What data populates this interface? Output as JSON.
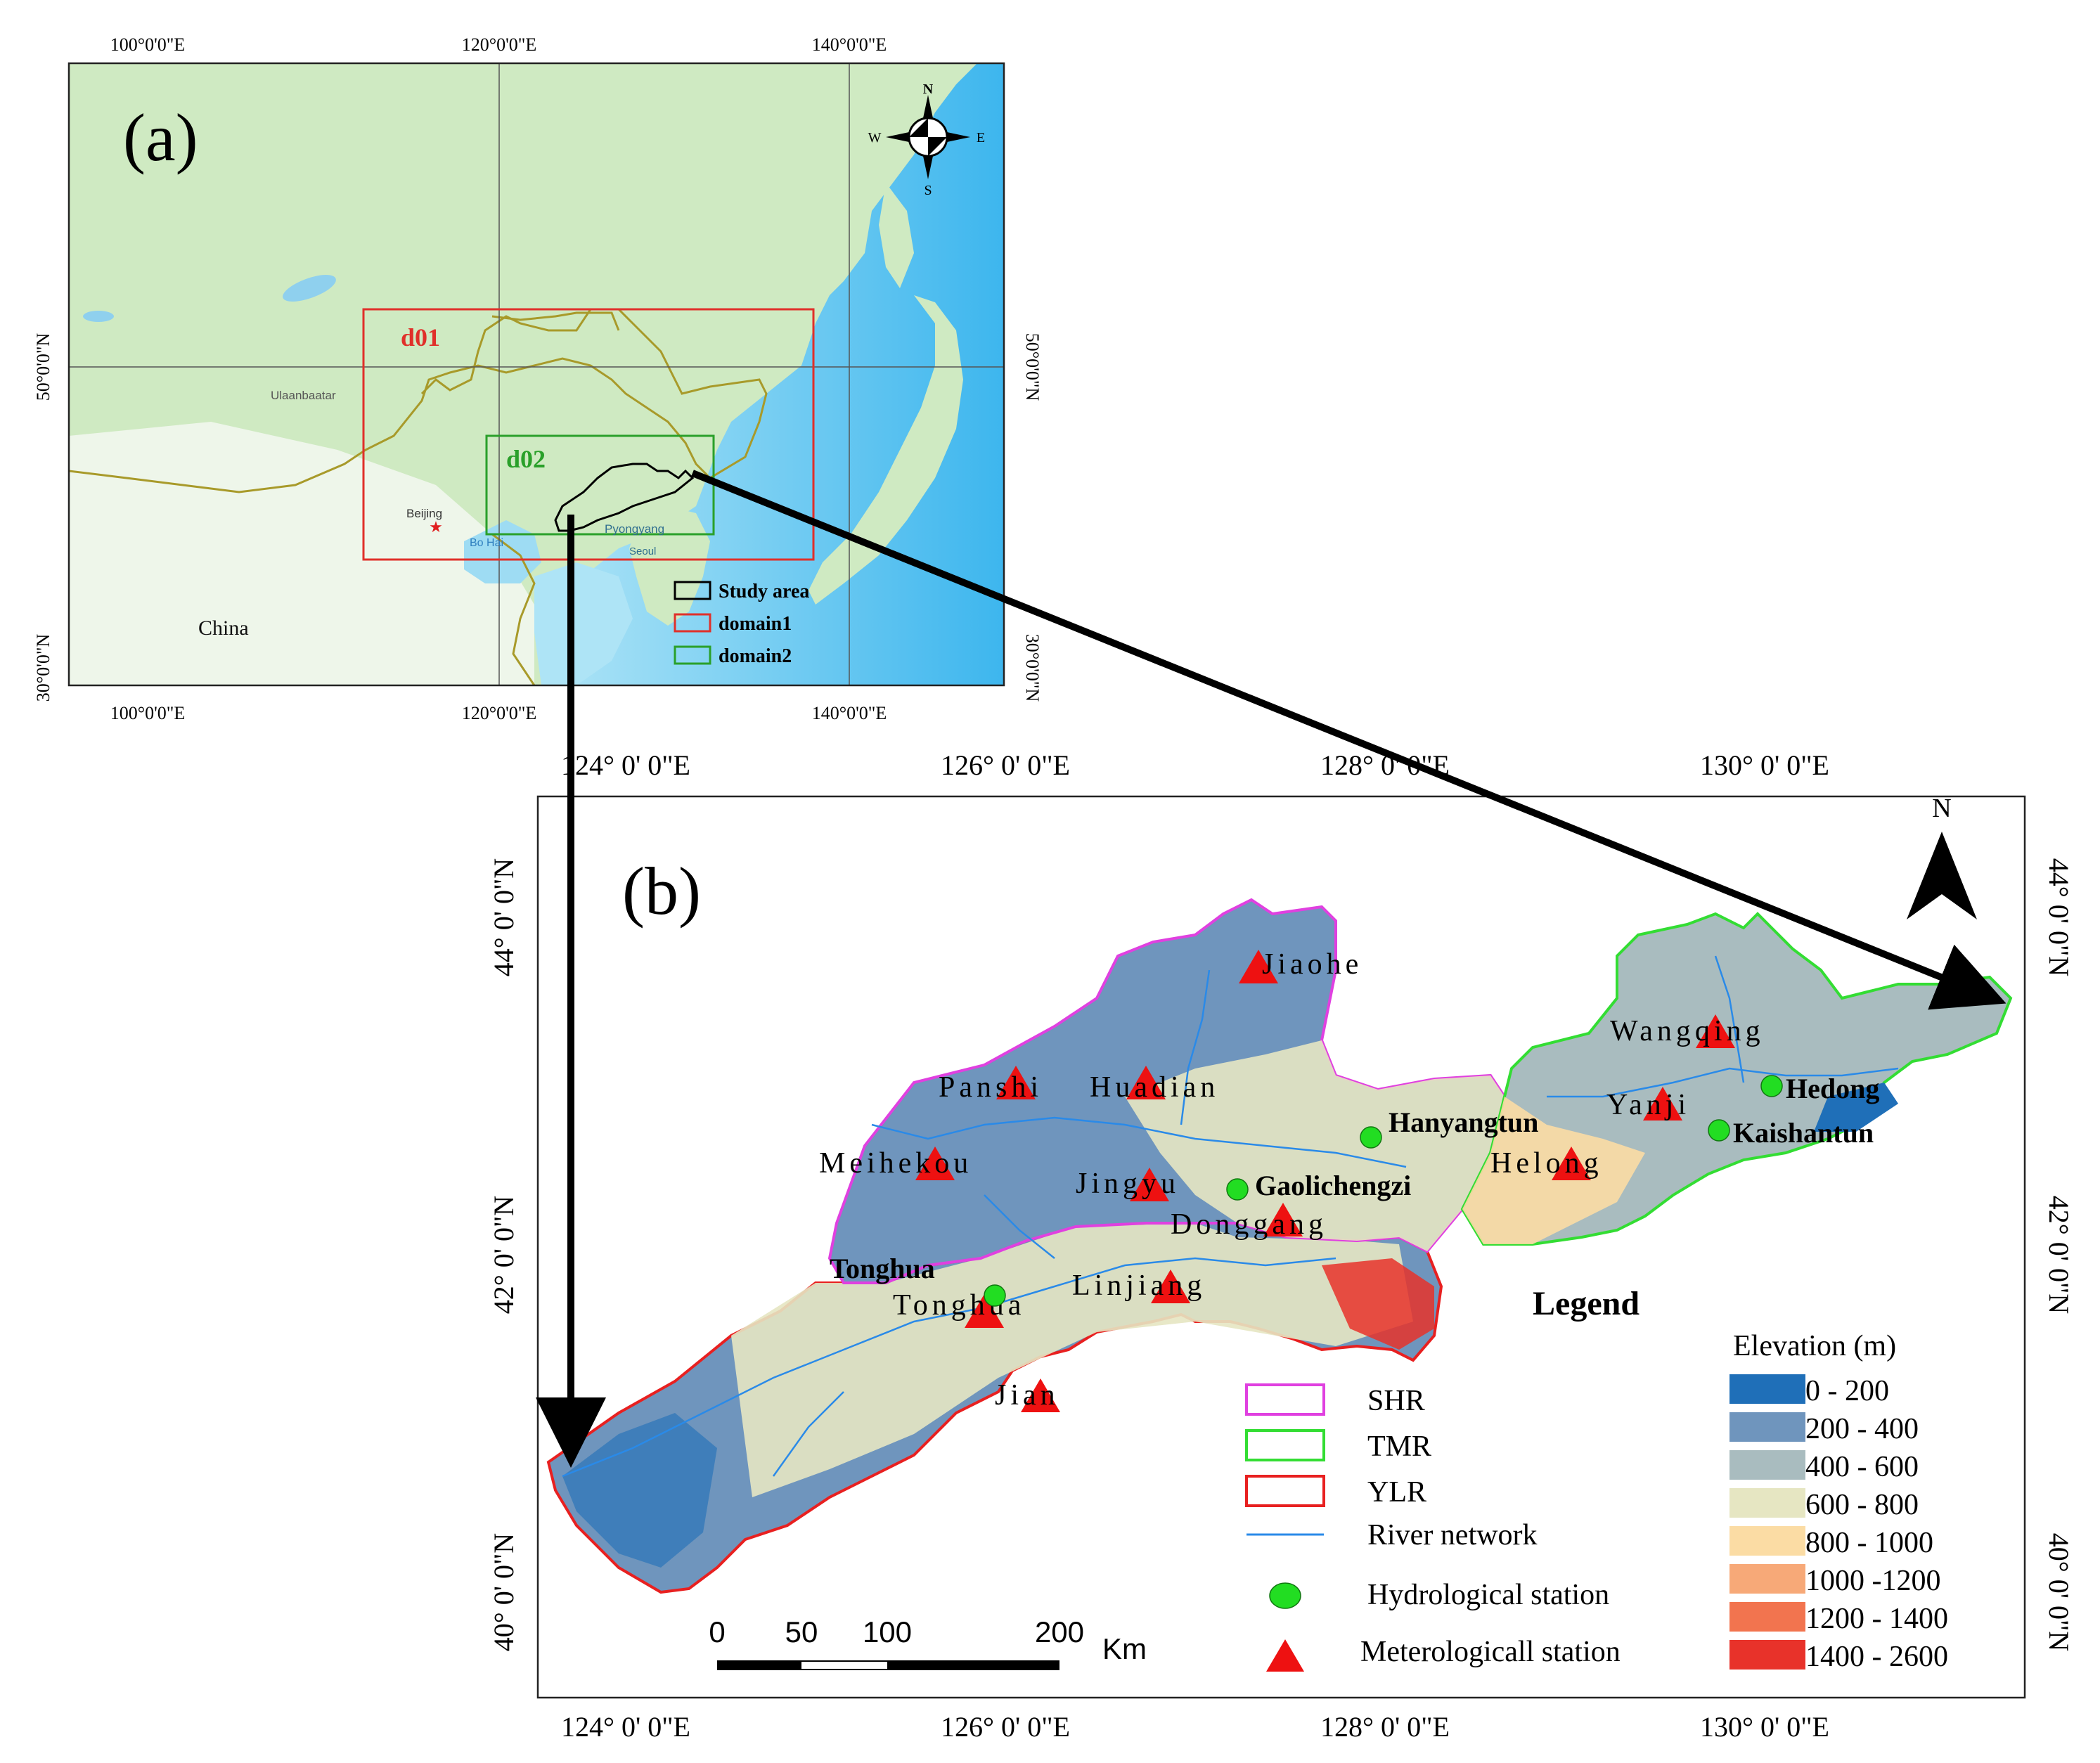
{
  "panel_a": {
    "label": "(a)",
    "top_ticks": [
      "100°0'0\"E",
      "120°0'0\"E",
      "140°0'0\"E"
    ],
    "bottom_ticks": [
      "100°0'0\"E",
      "120°0'0\"E",
      "140°0'0\"E"
    ],
    "left_ticks": [
      "50°0'0\"N",
      "30°0'0\"N"
    ],
    "right_ticks": [
      "50°0'0\"N",
      "30°0'0\"N"
    ],
    "domain1_label": "d01",
    "domain2_label": "d02",
    "place_labels": {
      "ulaanbaatar": "Ulaanbaatar",
      "beijing": "Beijing",
      "pyongyang": "Pyongyang",
      "seoul": "Seoul",
      "bohai": "Bo Hai",
      "china": "China"
    },
    "compass": {
      "n": "N",
      "s": "S",
      "e": "E",
      "w": "W"
    },
    "legend": [
      {
        "label": "Study area",
        "color": "#000000"
      },
      {
        "label": "domain1",
        "color": "#e0302a"
      },
      {
        "label": "domain2",
        "color": "#2aa02a"
      }
    ],
    "colors": {
      "land": "#cfeac2",
      "sea": "#8fd6f0",
      "deep_sea": "#3fb8ec",
      "border": "#a89a2a"
    }
  },
  "panel_b": {
    "label": "(b)",
    "north": "N",
    "top_ticks": [
      "124°  0' 0\"E",
      "126°  0' 0\"E",
      "128°  0' 0\"E",
      "130°  0' 0\"E"
    ],
    "bottom_ticks": [
      "124°  0' 0\"E",
      "126°  0' 0\"E",
      "128°  0' 0\"E",
      "130°  0' 0\"E"
    ],
    "left_ticks": [
      "44°  0' 0\"N",
      "42°  0' 0\"N",
      "40°  0' 0\"N"
    ],
    "right_ticks": [
      "44°  0' 0\"N",
      "42°  0' 0\"N",
      "40°  0' 0\"N"
    ],
    "met_stations": [
      "Jiaohe",
      "Panshi",
      "Huadian",
      "Meihekou",
      "Jingyu",
      "Donggang",
      "Tonghua",
      "Linjiang",
      "Jian",
      "Wangqing",
      "Yanji",
      "Helong"
    ],
    "hydro_stations": [
      "Hanyangtun",
      "Gaolichengzi",
      "Tonghua",
      "Hedong",
      "Kaishantun"
    ],
    "scale": {
      "ticks": [
        "0",
        "50",
        "100",
        "200"
      ],
      "unit": "Km"
    },
    "legend": {
      "title": "Legend",
      "regions": [
        {
          "label": "SHR",
          "color": "#e040e0"
        },
        {
          "label": "TMR",
          "color": "#33dd33"
        },
        {
          "label": "YLR",
          "color": "#e82020"
        }
      ],
      "river": {
        "label": "River network",
        "color": "#2a8ae8"
      },
      "hydro": {
        "label": "Hydrological station",
        "color": "#22dd22"
      },
      "met": {
        "label": "Meterologicall station",
        "color": "#ee1111"
      },
      "elevation_title": "Elevation (m)",
      "elevation_classes": [
        {
          "label": "0 - 200",
          "color": "#1f6fb8"
        },
        {
          "label": "200 - 400",
          "color": "#6f95bd"
        },
        {
          "label": "400 - 600",
          "color": "#a9bcbf"
        },
        {
          "label": "600 - 800",
          "color": "#e6e6c2"
        },
        {
          "label": "800 - 1000",
          "color": "#fbdca4"
        },
        {
          "label": "1000 -1200",
          "color": "#f7a978"
        },
        {
          "label": "1200 - 1400",
          "color": "#f2744f"
        },
        {
          "label": "1400 - 2600",
          "color": "#e8322a"
        }
      ]
    }
  }
}
